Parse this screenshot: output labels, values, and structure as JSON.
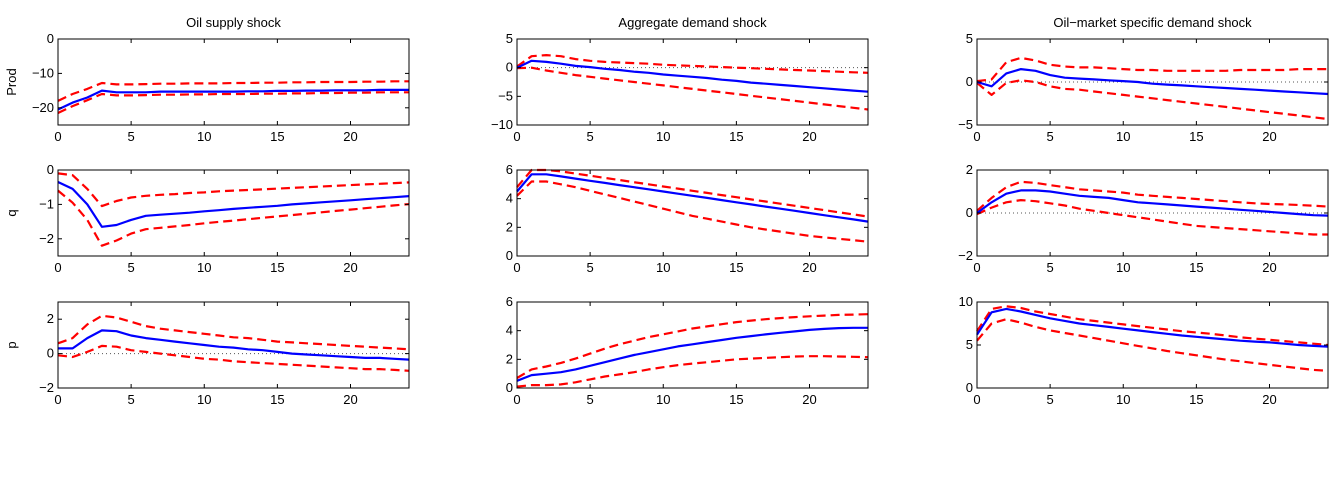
{
  "chart_data": {
    "type": "line",
    "colors": {
      "irf": "#0000ff",
      "band": "#ff0000",
      "zero": "#555555"
    },
    "x": [
      0,
      1,
      2,
      3,
      4,
      5,
      6,
      7,
      8,
      9,
      10,
      11,
      12,
      13,
      14,
      15,
      16,
      17,
      18,
      19,
      20,
      21,
      22,
      23,
      24
    ],
    "x_ticks": [
      0,
      5,
      10,
      15,
      20
    ],
    "xlim": [
      0,
      24
    ],
    "columns": [
      "Oil supply shock",
      "Aggregate demand shock",
      "Oil−market specific demand shock"
    ],
    "rows": [
      "Prod",
      "q",
      "p"
    ],
    "panels": [
      {
        "column": 0,
        "row": 0,
        "ylim": [
          -25,
          0
        ],
        "y_ticks": [
          0,
          -10,
          -20
        ],
        "y_tick_labels": [
          "0",
          "−10",
          "−20"
        ],
        "irf": [
          -20.5,
          -18.5,
          -17,
          -15,
          -15.5,
          -15.5,
          -15.5,
          -15.3,
          -15.3,
          -15.3,
          -15.3,
          -15.3,
          -15.3,
          -15.2,
          -15.2,
          -15.1,
          -15.1,
          -15,
          -15,
          -14.9,
          -14.9,
          -14.9,
          -14.8,
          -14.8,
          -14.8
        ],
        "upper": [
          -18,
          -16,
          -14.5,
          -12.8,
          -13.2,
          -13.2,
          -13.1,
          -13,
          -13,
          -12.9,
          -12.9,
          -12.9,
          -12.8,
          -12.8,
          -12.7,
          -12.7,
          -12.6,
          -12.6,
          -12.5,
          -12.5,
          -12.5,
          -12.4,
          -12.4,
          -12.3,
          -12.3
        ],
        "lower": [
          -21.5,
          -19.5,
          -17.8,
          -16,
          -16.4,
          -16.4,
          -16.3,
          -16.2,
          -16.2,
          -16.1,
          -16.1,
          -16,
          -16,
          -16,
          -15.9,
          -15.9,
          -15.8,
          -15.8,
          -15.7,
          -15.7,
          -15.6,
          -15.6,
          -15.5,
          -15.5,
          -15.5
        ]
      },
      {
        "column": 1,
        "row": 0,
        "ylim": [
          -10,
          5
        ],
        "y_ticks": [
          5,
          0,
          -5,
          -10
        ],
        "y_tick_labels": [
          "5",
          "0",
          "−5",
          "−10"
        ],
        "irf": [
          0,
          1.2,
          1,
          0.7,
          0.3,
          0.1,
          -0.2,
          -0.4,
          -0.7,
          -0.9,
          -1.2,
          -1.4,
          -1.6,
          -1.8,
          -2.1,
          -2.3,
          -2.6,
          -2.8,
          -3,
          -3.2,
          -3.4,
          -3.6,
          -3.8,
          -4,
          -4.2
        ],
        "upper": [
          0.2,
          2,
          2.2,
          2,
          1.5,
          1.2,
          1,
          0.9,
          0.8,
          0.7,
          0.5,
          0.4,
          0.3,
          0.2,
          0.1,
          0,
          -0.1,
          -0.2,
          -0.3,
          -0.4,
          -0.5,
          -0.6,
          -0.7,
          -0.8,
          -0.9
        ],
        "lower": [
          -0.1,
          0,
          -0.5,
          -0.9,
          -1.3,
          -1.6,
          -1.9,
          -2.2,
          -2.5,
          -2.8,
          -3.1,
          -3.4,
          -3.7,
          -4,
          -4.3,
          -4.6,
          -4.9,
          -5.2,
          -5.5,
          -5.8,
          -6.1,
          -6.4,
          -6.7,
          -7,
          -7.3
        ]
      },
      {
        "column": 2,
        "row": 0,
        "ylim": [
          -5,
          5
        ],
        "y_ticks": [
          5,
          0,
          -5
        ],
        "y_tick_labels": [
          "5",
          "0",
          "−5"
        ],
        "irf": [
          0,
          -0.5,
          1,
          1.5,
          1.3,
          0.8,
          0.5,
          0.4,
          0.3,
          0.2,
          0.1,
          0,
          -0.2,
          -0.3,
          -0.4,
          -0.5,
          -0.6,
          -0.7,
          -0.8,
          -0.9,
          -1,
          -1.1,
          -1.2,
          -1.3,
          -1.4
        ],
        "upper": [
          0.1,
          0.3,
          2.3,
          2.8,
          2.5,
          2,
          1.8,
          1.7,
          1.7,
          1.6,
          1.5,
          1.4,
          1.4,
          1.3,
          1.3,
          1.3,
          1.3,
          1.3,
          1.4,
          1.4,
          1.4,
          1.4,
          1.5,
          1.5,
          1.5
        ],
        "lower": [
          -0.1,
          -1.5,
          -0.1,
          0.2,
          0,
          -0.5,
          -0.8,
          -0.9,
          -1.1,
          -1.3,
          -1.5,
          -1.7,
          -1.9,
          -2.1,
          -2.3,
          -2.5,
          -2.7,
          -2.9,
          -3.1,
          -3.3,
          -3.5,
          -3.7,
          -3.9,
          -4.1,
          -4.3
        ]
      },
      {
        "column": 0,
        "row": 1,
        "ylim": [
          -2.5,
          0
        ],
        "y_ticks": [
          0,
          -1,
          -2
        ],
        "y_tick_labels": [
          "0",
          "−1",
          "−2"
        ],
        "irf": [
          -0.35,
          -0.55,
          -1,
          -1.65,
          -1.6,
          -1.45,
          -1.33,
          -1.3,
          -1.27,
          -1.24,
          -1.2,
          -1.17,
          -1.13,
          -1.1,
          -1.07,
          -1.04,
          -1,
          -0.97,
          -0.94,
          -0.91,
          -0.88,
          -0.85,
          -0.82,
          -0.79,
          -0.76
        ],
        "upper": [
          -0.1,
          -0.15,
          -0.55,
          -1.05,
          -0.9,
          -0.8,
          -0.75,
          -0.72,
          -0.7,
          -0.67,
          -0.65,
          -0.62,
          -0.6,
          -0.58,
          -0.56,
          -0.54,
          -0.52,
          -0.5,
          -0.48,
          -0.46,
          -0.44,
          -0.42,
          -0.4,
          -0.38,
          -0.36
        ],
        "lower": [
          -0.6,
          -0.95,
          -1.45,
          -2.2,
          -2.05,
          -1.85,
          -1.72,
          -1.68,
          -1.64,
          -1.6,
          -1.55,
          -1.51,
          -1.47,
          -1.43,
          -1.39,
          -1.35,
          -1.31,
          -1.27,
          -1.23,
          -1.19,
          -1.15,
          -1.11,
          -1.07,
          -1.03,
          -0.99
        ]
      },
      {
        "column": 1,
        "row": 1,
        "ylim": [
          0,
          6
        ],
        "y_ticks": [
          6,
          4,
          2,
          0
        ],
        "y_tick_labels": [
          "6",
          "4",
          "2",
          "0"
        ],
        "irf": [
          4.5,
          5.7,
          5.7,
          5.55,
          5.4,
          5.25,
          5.1,
          4.95,
          4.8,
          4.65,
          4.5,
          4.35,
          4.2,
          4.05,
          3.9,
          3.75,
          3.6,
          3.45,
          3.3,
          3.15,
          3,
          2.85,
          2.7,
          2.55,
          2.4
        ],
        "upper": [
          4.8,
          6,
          6,
          5.9,
          5.75,
          5.6,
          5.45,
          5.3,
          5.15,
          5,
          4.85,
          4.7,
          4.55,
          4.4,
          4.25,
          4.1,
          3.95,
          3.8,
          3.65,
          3.5,
          3.35,
          3.2,
          3.05,
          2.9,
          2.75
        ],
        "lower": [
          4.2,
          5.2,
          5.2,
          5,
          4.8,
          4.55,
          4.3,
          4.05,
          3.8,
          3.55,
          3.3,
          3.05,
          2.8,
          2.6,
          2.4,
          2.2,
          2,
          1.85,
          1.7,
          1.55,
          1.4,
          1.3,
          1.2,
          1.1,
          1
        ]
      },
      {
        "column": 2,
        "row": 1,
        "ylim": [
          -2,
          2
        ],
        "y_ticks": [
          2,
          0,
          -2
        ],
        "y_tick_labels": [
          "2",
          "0",
          "−2"
        ],
        "irf": [
          0,
          0.5,
          0.9,
          1.05,
          1.05,
          1,
          0.9,
          0.8,
          0.75,
          0.7,
          0.6,
          0.5,
          0.45,
          0.4,
          0.35,
          0.3,
          0.25,
          0.2,
          0.15,
          0.1,
          0.05,
          0,
          -0.05,
          -0.1,
          -0.12
        ],
        "upper": [
          0.1,
          0.7,
          1.2,
          1.45,
          1.4,
          1.3,
          1.2,
          1.1,
          1.05,
          1,
          0.95,
          0.85,
          0.8,
          0.75,
          0.7,
          0.65,
          0.6,
          0.55,
          0.5,
          0.45,
          0.42,
          0.4,
          0.37,
          0.34,
          0.3
        ],
        "lower": [
          -0.05,
          0.25,
          0.5,
          0.6,
          0.55,
          0.45,
          0.35,
          0.2,
          0.1,
          0,
          -0.1,
          -0.2,
          -0.3,
          -0.4,
          -0.5,
          -0.6,
          -0.65,
          -0.7,
          -0.75,
          -0.8,
          -0.85,
          -0.9,
          -0.95,
          -1,
          -1
        ]
      },
      {
        "column": 0,
        "row": 2,
        "ylim": [
          -2,
          3
        ],
        "y_ticks": [
          2,
          0,
          -2
        ],
        "y_tick_labels": [
          "2",
          "0",
          "−2"
        ],
        "irf": [
          0.3,
          0.3,
          0.9,
          1.35,
          1.3,
          1.05,
          0.9,
          0.8,
          0.7,
          0.6,
          0.5,
          0.4,
          0.35,
          0.25,
          0.2,
          0.1,
          0,
          -0.05,
          -0.1,
          -0.15,
          -0.2,
          -0.25,
          -0.25,
          -0.3,
          -0.35
        ],
        "upper": [
          0.6,
          0.9,
          1.7,
          2.2,
          2.1,
          1.85,
          1.6,
          1.45,
          1.35,
          1.25,
          1.15,
          1.05,
          0.95,
          0.9,
          0.8,
          0.7,
          0.65,
          0.6,
          0.55,
          0.5,
          0.45,
          0.4,
          0.35,
          0.3,
          0.25
        ],
        "lower": [
          -0.1,
          -0.2,
          0.1,
          0.45,
          0.4,
          0.2,
          0.1,
          0,
          -0.1,
          -0.2,
          -0.3,
          -0.35,
          -0.45,
          -0.5,
          -0.55,
          -0.6,
          -0.65,
          -0.7,
          -0.75,
          -0.8,
          -0.85,
          -0.9,
          -0.9,
          -0.95,
          -1
        ]
      },
      {
        "column": 1,
        "row": 2,
        "ylim": [
          0,
          6
        ],
        "y_ticks": [
          6,
          4,
          2,
          0
        ],
        "y_tick_labels": [
          "6",
          "4",
          "2",
          "0"
        ],
        "irf": [
          0.5,
          0.9,
          1,
          1.1,
          1.3,
          1.55,
          1.8,
          2.05,
          2.3,
          2.5,
          2.7,
          2.9,
          3.05,
          3.2,
          3.35,
          3.5,
          3.62,
          3.74,
          3.85,
          3.95,
          4.05,
          4.12,
          4.18,
          4.2,
          4.2
        ],
        "upper": [
          0.7,
          1.3,
          1.5,
          1.75,
          2.05,
          2.4,
          2.75,
          3.05,
          3.3,
          3.55,
          3.75,
          3.95,
          4.15,
          4.3,
          4.45,
          4.6,
          4.7,
          4.8,
          4.88,
          4.95,
          5,
          5.05,
          5.1,
          5.12,
          5.15
        ],
        "lower": [
          0.1,
          0.2,
          0.2,
          0.25,
          0.4,
          0.6,
          0.8,
          0.95,
          1.1,
          1.3,
          1.45,
          1.6,
          1.7,
          1.8,
          1.9,
          2,
          2.05,
          2.1,
          2.15,
          2.2,
          2.22,
          2.22,
          2.2,
          2.18,
          2.15
        ]
      },
      {
        "column": 2,
        "row": 2,
        "ylim": [
          0,
          10
        ],
        "y_ticks": [
          10,
          5,
          0
        ],
        "y_tick_labels": [
          "10",
          "5",
          "0"
        ],
        "irf": [
          6.2,
          8.8,
          9.2,
          8.9,
          8.5,
          8.1,
          7.8,
          7.5,
          7.3,
          7.1,
          6.9,
          6.7,
          6.5,
          6.3,
          6.1,
          5.95,
          5.8,
          5.65,
          5.5,
          5.4,
          5.3,
          5.15,
          5,
          4.9,
          4.8
        ],
        "upper": [
          6.6,
          9.2,
          9.5,
          9.3,
          8.9,
          8.6,
          8.3,
          8,
          7.8,
          7.6,
          7.4,
          7.2,
          7,
          6.8,
          6.6,
          6.45,
          6.3,
          6.1,
          5.9,
          5.75,
          5.6,
          5.45,
          5.3,
          5.15,
          5
        ],
        "lower": [
          5.5,
          7.5,
          8,
          7.6,
          7.1,
          6.7,
          6.4,
          6.1,
          5.8,
          5.5,
          5.2,
          4.9,
          4.6,
          4.3,
          4.05,
          3.8,
          3.55,
          3.3,
          3.1,
          2.9,
          2.7,
          2.5,
          2.3,
          2.1,
          2
        ]
      }
    ]
  }
}
